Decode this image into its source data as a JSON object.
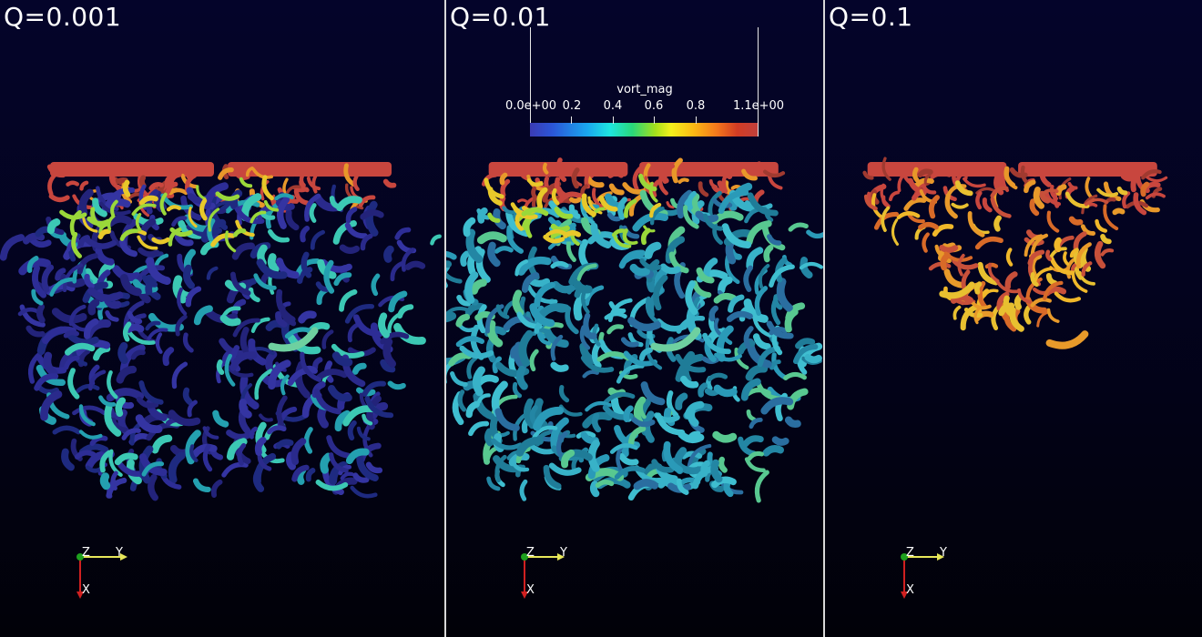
{
  "viewports": [
    {
      "title": "Q=0.001",
      "dominant_color": "#2a2a8c"
    },
    {
      "title": "Q=0.01",
      "dominant_color": "#2a9ab8"
    },
    {
      "title": "Q=0.1",
      "dominant_color": "#e89a2a"
    }
  ],
  "legend": {
    "title": "vort_mag",
    "ticks": [
      "0.0e+00",
      "0.2",
      "0.4",
      "0.6",
      "0.8",
      "1.1e+00"
    ],
    "range": [
      0.0,
      1.1
    ],
    "colormap": [
      "#3b3bb4",
      "#1aa6ee",
      "#1ee6e0",
      "#29d87a",
      "#f4f01c",
      "#f4781c",
      "#c0403c"
    ]
  },
  "axes": {
    "z_label": "Z",
    "y_label": "Y",
    "x_label": "X"
  },
  "colors": {
    "top_band": "#c8463e",
    "background": "#03031e",
    "divider": "#d8d8d8"
  }
}
